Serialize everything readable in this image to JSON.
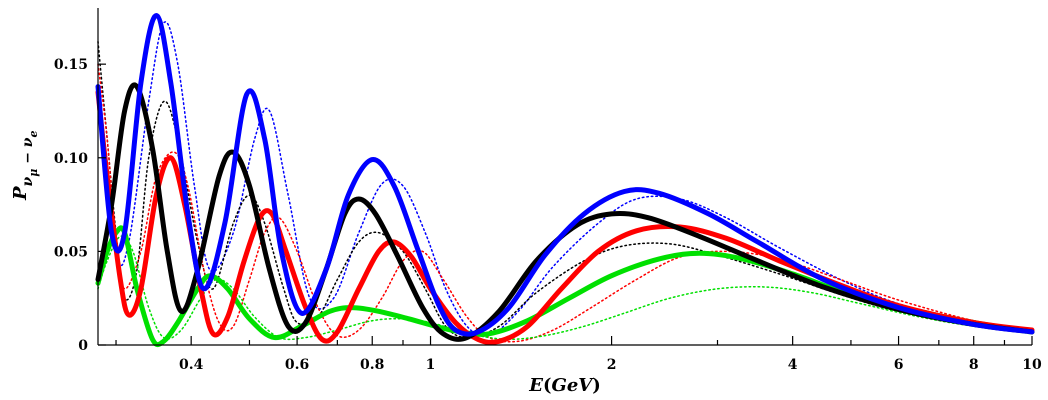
{
  "chart_data": {
    "type": "line",
    "x_scale": "log",
    "xlim": [
      0.28,
      10
    ],
    "ylim": [
      0,
      0.18
    ],
    "xlabel": {
      "main": "E",
      "open": "(",
      "unit": "GeV",
      "close": ")"
    },
    "ylabel": {
      "main": "P",
      "sub1": "ν",
      "subsub1": "μ",
      "dash": " − ",
      "sub2": "ν",
      "subsub2": "e"
    },
    "x_ticks": [
      {
        "value": 0.4,
        "label": "0.4"
      },
      {
        "value": 0.6,
        "label": "0.6"
      },
      {
        "value": 0.8,
        "label": "0.8"
      },
      {
        "value": 1,
        "label": "1"
      },
      {
        "value": 2,
        "label": "2"
      },
      {
        "value": 4,
        "label": "4"
      },
      {
        "value": 6,
        "label": "6"
      },
      {
        "value": 8,
        "label": "8"
      },
      {
        "value": 10,
        "label": "10"
      }
    ],
    "x_minor_ticks": [
      0.3,
      0.5,
      0.7,
      0.9,
      3,
      5,
      7,
      9
    ],
    "y_ticks": [
      {
        "value": 0,
        "label": "0"
      },
      {
        "value": 0.05,
        "label": "0.05"
      },
      {
        "value": 0.1,
        "label": "0.10"
      },
      {
        "value": 0.15,
        "label": "0.15"
      }
    ],
    "series": [
      {
        "name": "blue-solid",
        "color": "#0000ff",
        "style": "solid",
        "width": 5,
        "points": [
          [
            0.28,
            0.138
          ],
          [
            0.295,
            0.06
          ],
          [
            0.31,
            0.06
          ],
          [
            0.33,
            0.14
          ],
          [
            0.35,
            0.176
          ],
          [
            0.37,
            0.14
          ],
          [
            0.395,
            0.07
          ],
          [
            0.42,
            0.03
          ],
          [
            0.455,
            0.065
          ],
          [
            0.495,
            0.134
          ],
          [
            0.53,
            0.11
          ],
          [
            0.565,
            0.05
          ],
          [
            0.61,
            0.017
          ],
          [
            0.67,
            0.04
          ],
          [
            0.73,
            0.08
          ],
          [
            0.8,
            0.099
          ],
          [
            0.87,
            0.085
          ],
          [
            0.95,
            0.052
          ],
          [
            1.03,
            0.022
          ],
          [
            1.1,
            0.008
          ],
          [
            1.2,
            0.007
          ],
          [
            1.35,
            0.02
          ],
          [
            1.55,
            0.048
          ],
          [
            1.8,
            0.07
          ],
          [
            2.1,
            0.082
          ],
          [
            2.4,
            0.081
          ],
          [
            2.9,
            0.07
          ],
          [
            3.5,
            0.055
          ],
          [
            4.5,
            0.035
          ],
          [
            6,
            0.02
          ],
          [
            8,
            0.011
          ],
          [
            10,
            0.007
          ]
        ]
      },
      {
        "name": "black-solid",
        "color": "#000000",
        "style": "solid",
        "width": 5,
        "points": [
          [
            0.28,
            0.035
          ],
          [
            0.295,
            0.075
          ],
          [
            0.31,
            0.125
          ],
          [
            0.325,
            0.138
          ],
          [
            0.345,
            0.105
          ],
          [
            0.365,
            0.05
          ],
          [
            0.385,
            0.018
          ],
          [
            0.41,
            0.04
          ],
          [
            0.445,
            0.09
          ],
          [
            0.47,
            0.103
          ],
          [
            0.5,
            0.085
          ],
          [
            0.54,
            0.04
          ],
          [
            0.58,
            0.01
          ],
          [
            0.62,
            0.012
          ],
          [
            0.67,
            0.04
          ],
          [
            0.72,
            0.07
          ],
          [
            0.76,
            0.078
          ],
          [
            0.81,
            0.07
          ],
          [
            0.88,
            0.048
          ],
          [
            0.97,
            0.02
          ],
          [
            1.05,
            0.006
          ],
          [
            1.15,
            0.004
          ],
          [
            1.3,
            0.018
          ],
          [
            1.5,
            0.045
          ],
          [
            1.75,
            0.064
          ],
          [
            2.0,
            0.07
          ],
          [
            2.3,
            0.068
          ],
          [
            2.8,
            0.058
          ],
          [
            3.5,
            0.045
          ],
          [
            4.5,
            0.031
          ],
          [
            6,
            0.019
          ],
          [
            8,
            0.011
          ],
          [
            10,
            0.007
          ]
        ]
      },
      {
        "name": "red-solid",
        "color": "#ff0000",
        "style": "solid",
        "width": 5,
        "points": [
          [
            0.28,
            0.135
          ],
          [
            0.29,
            0.09
          ],
          [
            0.305,
            0.035
          ],
          [
            0.315,
            0.016
          ],
          [
            0.33,
            0.03
          ],
          [
            0.35,
            0.08
          ],
          [
            0.37,
            0.1
          ],
          [
            0.39,
            0.075
          ],
          [
            0.415,
            0.03
          ],
          [
            0.435,
            0.006
          ],
          [
            0.46,
            0.015
          ],
          [
            0.49,
            0.045
          ],
          [
            0.52,
            0.068
          ],
          [
            0.545,
            0.07
          ],
          [
            0.575,
            0.05
          ],
          [
            0.62,
            0.02
          ],
          [
            0.66,
            0.003
          ],
          [
            0.7,
            0.007
          ],
          [
            0.76,
            0.03
          ],
          [
            0.82,
            0.05
          ],
          [
            0.87,
            0.055
          ],
          [
            0.93,
            0.047
          ],
          [
            1.0,
            0.03
          ],
          [
            1.1,
            0.012
          ],
          [
            1.2,
            0.003
          ],
          [
            1.3,
            0.002
          ],
          [
            1.45,
            0.01
          ],
          [
            1.65,
            0.03
          ],
          [
            1.9,
            0.05
          ],
          [
            2.2,
            0.061
          ],
          [
            2.6,
            0.063
          ],
          [
            3.1,
            0.057
          ],
          [
            3.8,
            0.045
          ],
          [
            4.8,
            0.032
          ],
          [
            6,
            0.021
          ],
          [
            8,
            0.012
          ],
          [
            10,
            0.008
          ]
        ]
      },
      {
        "name": "green-solid",
        "color": "#00e000",
        "style": "solid",
        "width": 5,
        "points": [
          [
            0.28,
            0.033
          ],
          [
            0.29,
            0.05
          ],
          [
            0.3,
            0.06
          ],
          [
            0.31,
            0.06
          ],
          [
            0.325,
            0.03
          ],
          [
            0.345,
            0.003
          ],
          [
            0.36,
            0.002
          ],
          [
            0.38,
            0.012
          ],
          [
            0.41,
            0.03
          ],
          [
            0.43,
            0.037
          ],
          [
            0.46,
            0.03
          ],
          [
            0.5,
            0.014
          ],
          [
            0.55,
            0.004
          ],
          [
            0.61,
            0.01
          ],
          [
            0.68,
            0.018
          ],
          [
            0.74,
            0.02
          ],
          [
            0.82,
            0.018
          ],
          [
            0.92,
            0.014
          ],
          [
            1.02,
            0.01
          ],
          [
            1.12,
            0.007
          ],
          [
            1.25,
            0.006
          ],
          [
            1.45,
            0.013
          ],
          [
            1.7,
            0.025
          ],
          [
            2.0,
            0.037
          ],
          [
            2.4,
            0.046
          ],
          [
            2.8,
            0.049
          ],
          [
            3.3,
            0.046
          ],
          [
            4,
            0.038
          ],
          [
            5,
            0.027
          ],
          [
            6.5,
            0.018
          ],
          [
            8,
            0.012
          ],
          [
            10,
            0.007
          ]
        ]
      },
      {
        "name": "blue-dotted",
        "color": "#0000ff",
        "style": "dotted",
        "width": 1.5,
        "points": [
          [
            0.28,
            0.13
          ],
          [
            0.3,
            0.05
          ],
          [
            0.315,
            0.055
          ],
          [
            0.34,
            0.13
          ],
          [
            0.36,
            0.172
          ],
          [
            0.38,
            0.15
          ],
          [
            0.405,
            0.085
          ],
          [
            0.43,
            0.04
          ],
          [
            0.47,
            0.06
          ],
          [
            0.51,
            0.11
          ],
          [
            0.54,
            0.125
          ],
          [
            0.58,
            0.08
          ],
          [
            0.63,
            0.025
          ],
          [
            0.69,
            0.025
          ],
          [
            0.76,
            0.06
          ],
          [
            0.83,
            0.086
          ],
          [
            0.9,
            0.085
          ],
          [
            0.98,
            0.06
          ],
          [
            1.06,
            0.03
          ],
          [
            1.15,
            0.01
          ],
          [
            1.25,
            0.005
          ],
          [
            1.4,
            0.018
          ],
          [
            1.6,
            0.042
          ],
          [
            1.9,
            0.065
          ],
          [
            2.2,
            0.078
          ],
          [
            2.6,
            0.078
          ],
          [
            3.1,
            0.068
          ],
          [
            3.8,
            0.052
          ],
          [
            4.8,
            0.035
          ],
          [
            6,
            0.022
          ],
          [
            8,
            0.012
          ],
          [
            10,
            0.007
          ]
        ]
      },
      {
        "name": "black-dotted",
        "color": "#000000",
        "style": "dotted",
        "width": 1.5,
        "points": [
          [
            0.28,
            0.162
          ],
          [
            0.29,
            0.11
          ],
          [
            0.3,
            0.06
          ],
          [
            0.31,
            0.025
          ],
          [
            0.325,
            0.04
          ],
          [
            0.34,
            0.1
          ],
          [
            0.36,
            0.13
          ],
          [
            0.38,
            0.11
          ],
          [
            0.41,
            0.055
          ],
          [
            0.435,
            0.03
          ],
          [
            0.47,
            0.065
          ],
          [
            0.5,
            0.08
          ],
          [
            0.53,
            0.065
          ],
          [
            0.57,
            0.03
          ],
          [
            0.6,
            0.012
          ],
          [
            0.65,
            0.015
          ],
          [
            0.7,
            0.035
          ],
          [
            0.76,
            0.055
          ],
          [
            0.82,
            0.06
          ],
          [
            0.9,
            0.05
          ],
          [
            0.98,
            0.03
          ],
          [
            1.06,
            0.01
          ],
          [
            1.15,
            0.004
          ],
          [
            1.3,
            0.01
          ],
          [
            1.5,
            0.028
          ],
          [
            1.8,
            0.045
          ],
          [
            2.1,
            0.053
          ],
          [
            2.5,
            0.054
          ],
          [
            3,
            0.048
          ],
          [
            3.8,
            0.038
          ],
          [
            4.8,
            0.027
          ],
          [
            6,
            0.018
          ],
          [
            8,
            0.011
          ],
          [
            10,
            0.007
          ]
        ]
      },
      {
        "name": "red-dotted",
        "color": "#ff0000",
        "style": "dotted",
        "width": 1.5,
        "points": [
          [
            0.28,
            0.15
          ],
          [
            0.29,
            0.11
          ],
          [
            0.3,
            0.055
          ],
          [
            0.31,
            0.03
          ],
          [
            0.33,
            0.05
          ],
          [
            0.35,
            0.09
          ],
          [
            0.375,
            0.103
          ],
          [
            0.395,
            0.085
          ],
          [
            0.42,
            0.04
          ],
          [
            0.445,
            0.012
          ],
          [
            0.47,
            0.01
          ],
          [
            0.5,
            0.035
          ],
          [
            0.53,
            0.06
          ],
          [
            0.56,
            0.068
          ],
          [
            0.6,
            0.05
          ],
          [
            0.65,
            0.02
          ],
          [
            0.7,
            0.005
          ],
          [
            0.76,
            0.008
          ],
          [
            0.83,
            0.025
          ],
          [
            0.9,
            0.045
          ],
          [
            0.97,
            0.05
          ],
          [
            1.05,
            0.035
          ],
          [
            1.15,
            0.015
          ],
          [
            1.25,
            0.004
          ],
          [
            1.4,
            0.002
          ],
          [
            1.6,
            0.008
          ],
          [
            1.85,
            0.02
          ],
          [
            2.2,
            0.035
          ],
          [
            2.6,
            0.047
          ],
          [
            3.1,
            0.05
          ],
          [
            3.8,
            0.046
          ],
          [
            4.8,
            0.035
          ],
          [
            6,
            0.024
          ],
          [
            8,
            0.013
          ],
          [
            10,
            0.008
          ]
        ]
      },
      {
        "name": "green-dotted",
        "color": "#00e000",
        "style": "dotted",
        "width": 1.5,
        "points": [
          [
            0.28,
            0.03
          ],
          [
            0.29,
            0.045
          ],
          [
            0.305,
            0.058
          ],
          [
            0.32,
            0.05
          ],
          [
            0.34,
            0.02
          ],
          [
            0.36,
            0.004
          ],
          [
            0.385,
            0.008
          ],
          [
            0.415,
            0.025
          ],
          [
            0.44,
            0.035
          ],
          [
            0.47,
            0.03
          ],
          [
            0.51,
            0.015
          ],
          [
            0.56,
            0.004
          ],
          [
            0.62,
            0.004
          ],
          [
            0.7,
            0.008
          ],
          [
            0.8,
            0.013
          ],
          [
            0.9,
            0.014
          ],
          [
            1.0,
            0.012
          ],
          [
            1.1,
            0.008
          ],
          [
            1.2,
            0.005
          ],
          [
            1.35,
            0.003
          ],
          [
            1.55,
            0.005
          ],
          [
            1.8,
            0.01
          ],
          [
            2.1,
            0.017
          ],
          [
            2.5,
            0.025
          ],
          [
            3,
            0.03
          ],
          [
            3.6,
            0.031
          ],
          [
            4.3,
            0.028
          ],
          [
            5.2,
            0.022
          ],
          [
            6.5,
            0.015
          ],
          [
            8,
            0.01
          ],
          [
            10,
            0.006
          ]
        ]
      }
    ]
  }
}
